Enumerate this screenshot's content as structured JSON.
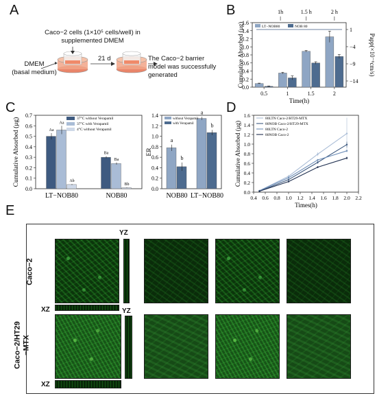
{
  "panels": {
    "A": {
      "letter": "A",
      "cell_text_line1": "Caco−2 cells (1×10⁵ cells/well) in",
      "cell_text_line2": "supplemented DMEM",
      "dmem_line1": "DMEM",
      "dmem_line2": "(basal medium)",
      "days": "21 d",
      "result_line1": "The Caco−2 barrier",
      "result_line2": "model was successfully",
      "result_line3": "generated"
    },
    "B": {
      "letter": "B"
    },
    "C": {
      "letter": "C"
    },
    "D": {
      "letter": "D"
    },
    "E": {
      "letter": "E",
      "yz_top": "YZ",
      "yz_bottom": "YZ",
      "xz_top": "XZ",
      "xz_bottom": "XZ",
      "row1_label": "Caco−2",
      "row2_label_line1": "Caco−2/HT29",
      "row2_label_line2": "−MTX"
    }
  },
  "colors": {
    "lt_nob80": "#8fa6c4",
    "nob80": "#4d6b8f",
    "dark_blue": "#3e5a80",
    "light_blue": "#a9bcd6",
    "pale": "#cfd9e8",
    "micro_green": "#2fae2f"
  },
  "chart_data": [
    {
      "id": "B",
      "type": "bar",
      "categories": [
        "0.5",
        "1",
        "1.5",
        "2"
      ],
      "series": [
        {
          "name": "LT−NOB80",
          "values": [
            0.09,
            0.35,
            0.89,
            1.25
          ],
          "errors": [
            0.01,
            0.02,
            0.02,
            0.14
          ]
        },
        {
          "name": "NOB 80",
          "values": [
            0.02,
            0.23,
            0.6,
            0.76
          ],
          "errors": [
            0.01,
            0.05,
            0.03,
            0.05
          ]
        }
      ],
      "xlabel": "Time(h)",
      "ylabel": "Cumulative Absorbed (μg)",
      "ylim": [
        0,
        1.6
      ],
      "yticks": [
        "0.0",
        "0.2",
        "0.4",
        "0.6",
        "0.8",
        "1.0",
        "1.2",
        "1.4",
        "1.6"
      ],
      "y2label": "Papp(×10⁻⁶cm/s)",
      "y2ticks": [
        "1",
        "−4",
        "−9",
        "−14"
      ],
      "top_labels": [
        "1h",
        "1.5 h",
        "2 h"
      ],
      "legend_labels": [
        "LT−NOB80",
        "NOB 80"
      ]
    },
    {
      "id": "C1",
      "type": "bar",
      "categories": [
        "LT−NOB80",
        "NOB80"
      ],
      "series": [
        {
          "name": "37°C without Verapamil",
          "values": [
            0.5,
            0.3
          ],
          "errors": [
            0.03,
            0.01
          ],
          "letters": [
            "Aa",
            "Ba"
          ]
        },
        {
          "name": "37°C with Verapamil",
          "values": [
            0.56,
            0.24
          ],
          "errors": [
            0.04,
            0.01
          ],
          "letters": [
            "Aa",
            "Ba"
          ]
        },
        {
          "name": "4°C without Verapamil",
          "values": [
            0.04,
            0.01
          ],
          "errors": [
            0.005,
            0.003
          ],
          "letters": [
            "Ab",
            "Bb"
          ]
        }
      ],
      "ylabel": "Cumulative Absorbed (μg)",
      "ylim": [
        0,
        0.7
      ],
      "yticks": [
        "0.0",
        "0.1",
        "0.2",
        "0.3",
        "0.4",
        "0.5",
        "0.6",
        "0.7"
      ]
    },
    {
      "id": "C2",
      "type": "bar",
      "categories": [
        "NOB80",
        "LT−NOB80"
      ],
      "series": [
        {
          "name": "without Verapamil",
          "values": [
            0.78,
            1.34
          ],
          "errors": [
            0.06,
            0.03
          ],
          "letters": [
            "a",
            "a"
          ]
        },
        {
          "name": "with Verapamil",
          "values": [
            0.42,
            1.07
          ],
          "errors": [
            0.08,
            0.05
          ],
          "letters": [
            "b",
            "b"
          ]
        }
      ],
      "ylabel": "ER",
      "ylim": [
        0,
        1.4
      ],
      "yticks": [
        "0.0",
        "0.2",
        "0.4",
        "0.6",
        "0.8",
        "1.0",
        "1.2",
        "1.4"
      ]
    },
    {
      "id": "D",
      "type": "line",
      "x": [
        0.5,
        1.0,
        1.5,
        2.0
      ],
      "series": [
        {
          "name": "80LTN Caco-2/HT29-MTX",
          "values": [
            0.03,
            0.33,
            0.79,
            1.22
          ],
          "errors": [
            0.01,
            0.03,
            0.04,
            0.33
          ],
          "color": "#a9bcd6"
        },
        {
          "name": "80NOB Caco-2/HT29-MTX",
          "values": [
            0.02,
            0.26,
            0.62,
            0.99
          ],
          "errors": [
            0.01,
            0.02,
            0.03,
            0.06
          ],
          "color": "#3e5a80"
        },
        {
          "name": "80LTN Caco-2",
          "values": [
            0.03,
            0.3,
            0.67,
            0.86
          ],
          "errors": [
            0.01,
            0.02,
            0.02,
            0.03
          ],
          "color": "#6f8fb8"
        },
        {
          "name": "80NOB Caco-2",
          "values": [
            0.02,
            0.22,
            0.52,
            0.71
          ],
          "errors": [
            0.01,
            0.02,
            0.02,
            0.03
          ],
          "color": "#1f2f4f"
        }
      ],
      "xlabel": "Times(h)",
      "ylabel": "Cumulative Absorbed (μg)",
      "xlim": [
        0.4,
        2.2
      ],
      "ylim": [
        0,
        1.6
      ],
      "xticks": [
        "0.4",
        "0.6",
        "0.8",
        "1.0",
        "1.2",
        "1.4",
        "1.6",
        "1.8",
        "2.0",
        "2.2"
      ],
      "yticks": [
        "0.0",
        "0.2",
        "0.4",
        "0.6",
        "0.8",
        "1.0",
        "1.2",
        "1.4",
        "1.6"
      ]
    }
  ]
}
